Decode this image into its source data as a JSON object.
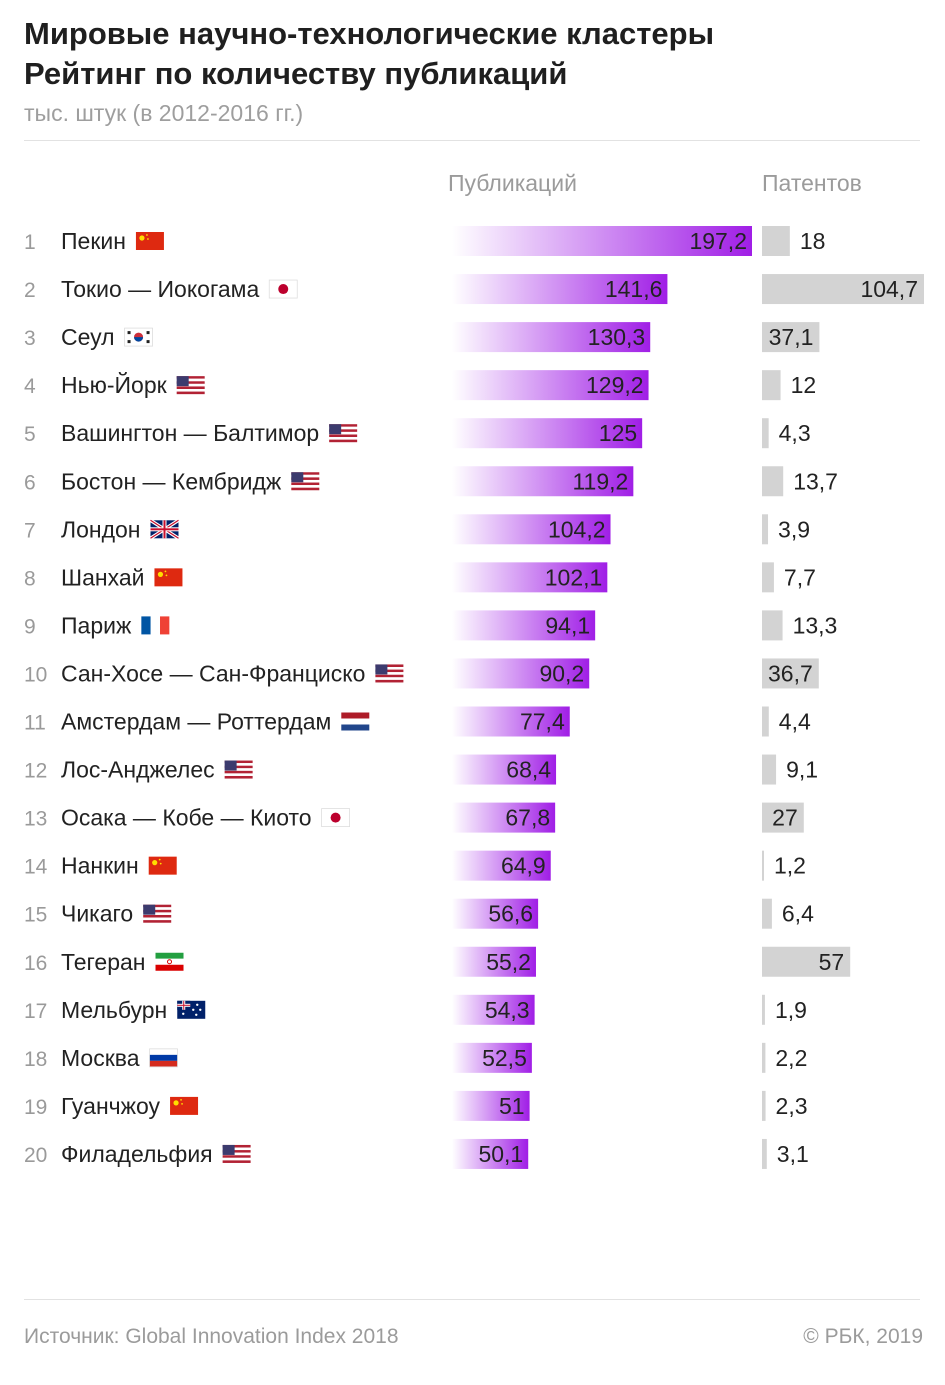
{
  "header": {
    "title_line1": "Мировые научно-технологические кластеры",
    "title_line2": "Рейтинг по количеству публикаций",
    "subtitle": "тыс. штук (в 2012-2016 гг.)"
  },
  "columns": {
    "publications": "Публикаций",
    "patents": "Патентов"
  },
  "footer": {
    "source": "Источник: Global Innovation Index 2018",
    "copyright": "© РБК, 2019"
  },
  "colors": {
    "bar_start": "#ffffff",
    "bar_end": "#a01ee6",
    "patent_bar": "#d3d3d3"
  },
  "chart_data": {
    "type": "bar",
    "categories": [
      "Пекин",
      "Токио — Иокогама",
      "Сеул",
      "Нью-Йорк",
      "Вашингтон — Балтимор",
      "Бостон — Кембридж",
      "Лондон",
      "Шанхай",
      "Париж",
      "Сан-Хосе — Сан-Франциско",
      "Амстердам — Роттердам",
      "Лос-Анджелес",
      "Осака — Кобе — Киото",
      "Нанкин",
      "Чикаго",
      "Тегеран",
      "Мельбурн",
      "Москва",
      "Гуанчжоу",
      "Филадельфия"
    ],
    "ranks": [
      "1",
      "2",
      "3",
      "4",
      "5",
      "6",
      "7",
      "8",
      "9",
      "10",
      "11",
      "12",
      "13",
      "14",
      "15",
      "16",
      "17",
      "18",
      "19",
      "20"
    ],
    "flags": [
      "cn",
      "jp",
      "kr",
      "us",
      "us",
      "us",
      "gb",
      "cn",
      "fr",
      "us",
      "nl",
      "us",
      "jp",
      "cn",
      "us",
      "ir",
      "au",
      "ru",
      "cn",
      "us"
    ],
    "series": [
      {
        "name": "Публикаций",
        "values": [
          197.2,
          141.6,
          130.3,
          129.2,
          125,
          119.2,
          104.2,
          102.1,
          94.1,
          90.2,
          77.4,
          68.4,
          67.8,
          64.9,
          56.6,
          55.2,
          54.3,
          52.5,
          51,
          50.1
        ],
        "labels": [
          "197,2",
          "141,6",
          "130,3",
          "129,2",
          "125",
          "119,2",
          "104,2",
          "102,1",
          "94,1",
          "90,2",
          "77,4",
          "68,4",
          "67,8",
          "64,9",
          "56,6",
          "55,2",
          "54,3",
          "52,5",
          "51",
          "50,1"
        ]
      },
      {
        "name": "Патентов",
        "values": [
          18,
          104.7,
          37.1,
          12,
          4.3,
          13.7,
          3.9,
          7.7,
          13.3,
          36.7,
          4.4,
          9.1,
          27,
          1.2,
          6.4,
          57,
          1.9,
          2.2,
          2.3,
          3.1
        ],
        "labels": [
          "18",
          "104,7",
          "37,1",
          "12",
          "4,3",
          "13,7",
          "3,9",
          "7,7",
          "13,3",
          "36,7",
          "4,4",
          "9,1",
          "27",
          "1,2",
          "6,4",
          "57",
          "1,9",
          "2,2",
          "2,3",
          "3,1"
        ]
      }
    ]
  }
}
